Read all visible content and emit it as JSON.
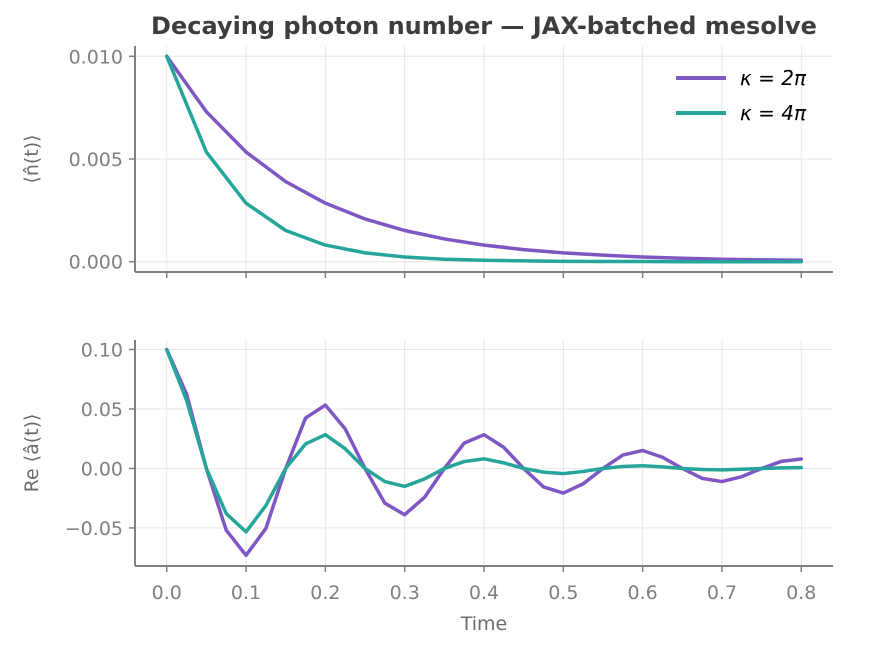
{
  "chart_data": [
    {
      "type": "line",
      "title": "Decaying photon number — JAX-batched mesolve",
      "ylabel": "⟨n̂(t)⟩",
      "xlabel": "",
      "xlim": [
        -0.04,
        0.84
      ],
      "ylim": [
        -0.0005,
        0.0105
      ],
      "xticks": [
        0.0,
        0.1,
        0.2,
        0.3,
        0.4,
        0.5,
        0.6,
        0.7,
        0.8
      ],
      "yticks": [
        0.0,
        0.005,
        0.01
      ],
      "ytick_labels": [
        "0.000",
        "0.005",
        "0.010"
      ],
      "grid": true,
      "legend_position": "top-right",
      "x": [
        0.0,
        0.05,
        0.1,
        0.15,
        0.2,
        0.25,
        0.3,
        0.35,
        0.4,
        0.45,
        0.5,
        0.55,
        0.6,
        0.65,
        0.7,
        0.75,
        0.8
      ],
      "series": [
        {
          "name": "κ = 2π",
          "color": "#7e57c2",
          "values": [
            0.01,
            0.0073,
            0.00534,
            0.0039,
            0.00285,
            0.00208,
            0.00152,
            0.00111,
            0.00081,
            0.00059,
            0.00043,
            0.00032,
            0.00023,
            0.00017,
            0.00012,
            9e-05,
            7e-05
          ]
        },
        {
          "name": "κ = 4π",
          "color": "#26a69a",
          "values": [
            0.01,
            0.00534,
            0.00285,
            0.00152,
            0.00081,
            0.00043,
            0.00023,
            0.00012,
            7e-05,
            4e-05,
            2e-05,
            1e-05,
            1e-05,
            0.0,
            0.0,
            0.0,
            0.0
          ]
        }
      ]
    },
    {
      "type": "line",
      "title": "",
      "ylabel": "Re ⟨â(t)⟩",
      "xlabel": "Time",
      "xlim": [
        -0.04,
        0.84
      ],
      "ylim": [
        -0.082,
        0.108
      ],
      "xticks": [
        0.0,
        0.1,
        0.2,
        0.3,
        0.4,
        0.5,
        0.6,
        0.7,
        0.8
      ],
      "xtick_labels": [
        "0.0",
        "0.1",
        "0.2",
        "0.3",
        "0.4",
        "0.5",
        "0.6",
        "0.7",
        "0.8"
      ],
      "yticks": [
        -0.05,
        0.0,
        0.05,
        0.1
      ],
      "ytick_labels": [
        "−0.05",
        "0.00",
        "0.05",
        "0.10"
      ],
      "grid": true,
      "x": [
        0.0,
        0.025,
        0.05,
        0.075,
        0.1,
        0.125,
        0.15,
        0.175,
        0.2,
        0.225,
        0.25,
        0.275,
        0.3,
        0.325,
        0.35,
        0.375,
        0.4,
        0.425,
        0.45,
        0.475,
        0.5,
        0.525,
        0.55,
        0.575,
        0.6,
        0.625,
        0.65,
        0.675,
        0.7,
        0.725,
        0.75,
        0.775,
        0.8
      ],
      "series": [
        {
          "name": "κ = 2π",
          "color": "#7e57c2",
          "values": [
            0.1,
            0.0625,
            0.0,
            -0.0519,
            -0.073,
            -0.0504,
            0.0,
            0.0424,
            0.0533,
            0.0333,
            0.0,
            -0.0292,
            -0.0389,
            -0.0243,
            0.0,
            0.0213,
            0.0284,
            0.0177,
            0.0,
            -0.0155,
            -0.0207,
            -0.0129,
            0.0,
            0.0113,
            0.0151,
            0.0094,
            0.0,
            -0.0083,
            -0.011,
            -0.0069,
            0.0,
            0.006,
            0.008
          ]
        },
        {
          "name": "κ = 4π",
          "color": "#26a69a",
          "values": [
            0.1,
            0.0573,
            0.0,
            -0.0379,
            -0.0533,
            -0.0312,
            0.0,
            0.0206,
            0.0284,
            0.0166,
            0.0,
            -0.011,
            -0.0151,
            -0.0088,
            0.0,
            0.0058,
            0.0081,
            0.0047,
            0.0,
            -0.0031,
            -0.0043,
            -0.0025,
            0.0,
            0.0017,
            0.0023,
            0.0013,
            0.0,
            -0.0009,
            -0.0012,
            -0.0007,
            0.0,
            0.0005,
            0.0007
          ]
        }
      ]
    }
  ]
}
